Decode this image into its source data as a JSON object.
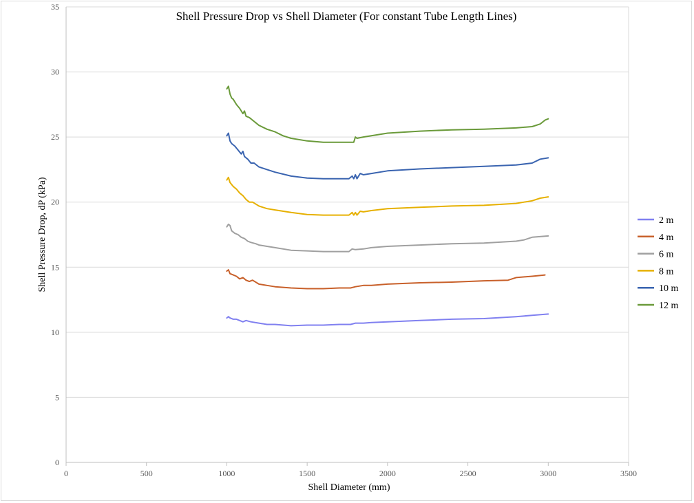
{
  "chart_data": {
    "type": "line",
    "title": "Shell Pressure Drop vs Shell Diameter (For constant Tube Length Lines)",
    "xlabel": "Shell Diameter (mm)",
    "ylabel": "Shell Pressure Drop, dP (kPa)",
    "xlim": [
      0,
      3500
    ],
    "ylim": [
      0,
      35
    ],
    "x_ticks": [
      0,
      500,
      1000,
      1500,
      2000,
      2500,
      3000,
      3500
    ],
    "y_ticks": [
      0,
      5,
      10,
      15,
      20,
      25,
      30,
      35
    ],
    "grid": "horizontal",
    "legend": "right",
    "series": [
      {
        "name": "2 m",
        "color": "#8080f0",
        "x": [
          1000,
          1010,
          1020,
          1040,
          1060,
          1080,
          1100,
          1120,
          1150,
          1200,
          1250,
          1300,
          1400,
          1500,
          1600,
          1700,
          1770,
          1800,
          1850,
          1900,
          2000,
          2200,
          2400,
          2600,
          2800,
          2900,
          3000
        ],
        "y": [
          11.1,
          11.2,
          11.1,
          11.0,
          11.0,
          10.9,
          10.8,
          10.9,
          10.8,
          10.7,
          10.6,
          10.6,
          10.5,
          10.55,
          10.55,
          10.6,
          10.6,
          10.7,
          10.7,
          10.75,
          10.8,
          10.9,
          11.0,
          11.05,
          11.2,
          11.3,
          11.4
        ]
      },
      {
        "name": "4 m",
        "color": "#c8602a",
        "x": [
          1000,
          1010,
          1020,
          1040,
          1060,
          1080,
          1100,
          1120,
          1140,
          1160,
          1200,
          1250,
          1300,
          1400,
          1500,
          1600,
          1700,
          1770,
          1800,
          1850,
          1900,
          2000,
          2200,
          2400,
          2600,
          2750,
          2800,
          2900,
          2980
        ],
        "y": [
          14.7,
          14.8,
          14.5,
          14.4,
          14.3,
          14.1,
          14.2,
          14.0,
          13.9,
          14.0,
          13.7,
          13.6,
          13.5,
          13.4,
          13.35,
          13.35,
          13.4,
          13.4,
          13.5,
          13.6,
          13.6,
          13.7,
          13.8,
          13.85,
          13.95,
          14.0,
          14.2,
          14.3,
          14.4
        ]
      },
      {
        "name": "6 m",
        "color": "#a0a0a0",
        "x": [
          1000,
          1010,
          1020,
          1030,
          1050,
          1070,
          1090,
          1110,
          1130,
          1150,
          1180,
          1200,
          1250,
          1300,
          1400,
          1500,
          1600,
          1700,
          1760,
          1780,
          1800,
          1850,
          1900,
          2000,
          2200,
          2400,
          2600,
          2800,
          2850,
          2900,
          3000
        ],
        "y": [
          18.1,
          18.3,
          18.2,
          17.8,
          17.6,
          17.5,
          17.3,
          17.2,
          17.0,
          16.9,
          16.8,
          16.7,
          16.6,
          16.5,
          16.3,
          16.25,
          16.2,
          16.2,
          16.2,
          16.4,
          16.35,
          16.4,
          16.5,
          16.6,
          16.7,
          16.8,
          16.85,
          17.0,
          17.1,
          17.3,
          17.4
        ]
      },
      {
        "name": "8 m",
        "color": "#e6b000",
        "x": [
          1000,
          1010,
          1020,
          1040,
          1060,
          1080,
          1100,
          1120,
          1140,
          1160,
          1200,
          1250,
          1300,
          1400,
          1500,
          1600,
          1700,
          1760,
          1780,
          1790,
          1800,
          1810,
          1830,
          1850,
          1900,
          2000,
          2200,
          2400,
          2600,
          2800,
          2850,
          2900,
          2950,
          3000
        ],
        "y": [
          21.7,
          21.9,
          21.5,
          21.2,
          21.0,
          20.7,
          20.5,
          20.2,
          20.0,
          20.0,
          19.7,
          19.5,
          19.4,
          19.2,
          19.05,
          19.0,
          19.0,
          19.0,
          19.2,
          19.0,
          19.2,
          19.0,
          19.3,
          19.25,
          19.35,
          19.5,
          19.6,
          19.7,
          19.75,
          19.9,
          20.0,
          20.1,
          20.3,
          20.4
        ]
      },
      {
        "name": "10 m",
        "color": "#3a64b0",
        "x": [
          1000,
          1010,
          1020,
          1030,
          1050,
          1070,
          1090,
          1100,
          1110,
          1130,
          1150,
          1170,
          1200,
          1250,
          1300,
          1400,
          1500,
          1600,
          1700,
          1760,
          1780,
          1790,
          1800,
          1810,
          1830,
          1850,
          1900,
          2000,
          2200,
          2400,
          2600,
          2800,
          2900,
          2950,
          3000
        ],
        "y": [
          25.1,
          25.3,
          24.7,
          24.5,
          24.3,
          24.0,
          23.7,
          23.9,
          23.5,
          23.3,
          23.0,
          23.0,
          22.7,
          22.5,
          22.3,
          22.0,
          21.85,
          21.8,
          21.8,
          21.8,
          22.0,
          21.8,
          22.1,
          21.8,
          22.2,
          22.1,
          22.2,
          22.4,
          22.55,
          22.65,
          22.75,
          22.85,
          23.0,
          23.3,
          23.4
        ]
      },
      {
        "name": "12 m",
        "color": "#6a9a3a",
        "x": [
          1000,
          1010,
          1020,
          1030,
          1040,
          1060,
          1080,
          1100,
          1110,
          1120,
          1140,
          1160,
          1180,
          1200,
          1250,
          1300,
          1350,
          1400,
          1500,
          1600,
          1700,
          1790,
          1800,
          1810,
          1850,
          1900,
          2000,
          2200,
          2400,
          2600,
          2800,
          2900,
          2950,
          2980,
          3000
        ],
        "y": [
          28.7,
          28.9,
          28.3,
          28.0,
          27.9,
          27.5,
          27.2,
          26.8,
          27.0,
          26.6,
          26.5,
          26.3,
          26.1,
          25.9,
          25.6,
          25.4,
          25.1,
          24.9,
          24.7,
          24.6,
          24.6,
          24.6,
          25.0,
          24.9,
          25.0,
          25.1,
          25.3,
          25.45,
          25.55,
          25.6,
          25.7,
          25.8,
          26.0,
          26.3,
          26.4
        ]
      }
    ]
  }
}
